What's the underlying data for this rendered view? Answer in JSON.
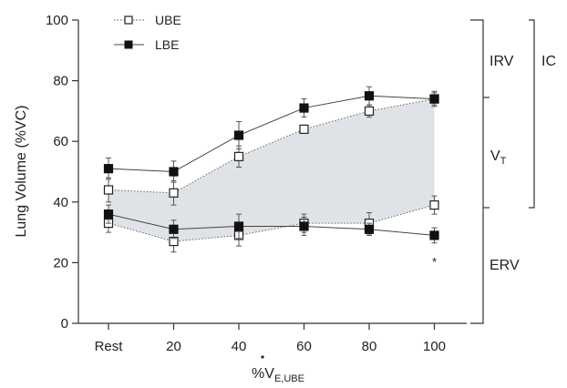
{
  "chart_data": {
    "type": "line",
    "ylabel": "Lung Volume (%VC)",
    "xlabel": {
      "prefix": "%",
      "base": "V",
      "sub": "E,UBE"
    },
    "categories": [
      "Rest",
      "20",
      "40",
      "60",
      "80",
      "100"
    ],
    "ylim": [
      0,
      100
    ],
    "yticks": [
      0,
      20,
      40,
      60,
      80,
      100
    ],
    "grid": false,
    "legend_position": "top-left",
    "series": [
      {
        "name": "UBE",
        "marker": "open-square",
        "line": "dotted",
        "role": "end-inspiratory",
        "values": [
          44,
          43,
          55,
          64,
          70,
          74
        ],
        "errors": [
          4,
          4,
          3.5,
          1,
          2,
          2
        ]
      },
      {
        "name": "UBE",
        "marker": "open-square",
        "line": "dotted",
        "role": "end-expiratory",
        "values": [
          33,
          27,
          29,
          33,
          33,
          39
        ],
        "errors": [
          3,
          3.5,
          3.5,
          3,
          3.5,
          3
        ]
      },
      {
        "name": "LBE",
        "marker": "filled-square",
        "line": "solid",
        "role": "end-inspiratory",
        "values": [
          51,
          50,
          62,
          71,
          75,
          74
        ],
        "errors": [
          3.5,
          3.5,
          4.5,
          3,
          3,
          2.5
        ]
      },
      {
        "name": "LBE",
        "marker": "filled-square",
        "line": "solid",
        "role": "end-expiratory",
        "values": [
          36,
          31,
          32,
          32,
          31,
          29
        ],
        "errors": [
          3,
          3,
          4,
          3,
          2,
          2.5
        ]
      }
    ],
    "shaded_band": {
      "between": [
        "end-expiratory",
        "end-inspiratory"
      ],
      "series": "UBE",
      "color": "#dfe2e6"
    },
    "significance": [
      {
        "category": "100",
        "y": 21,
        "mark": "*"
      }
    ],
    "annotations": {
      "IRV": "IRV",
      "VT_base": "V",
      "VT_sub": "T",
      "ERV": "ERV",
      "IC": "IC"
    }
  }
}
